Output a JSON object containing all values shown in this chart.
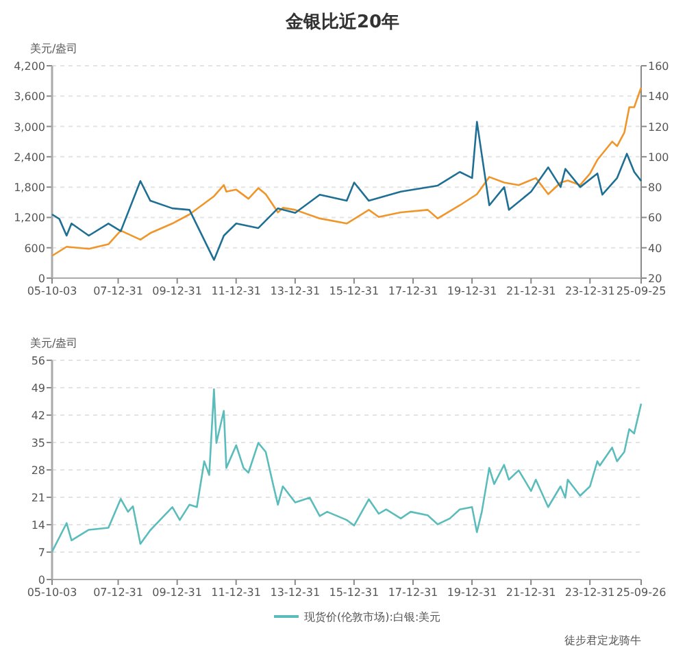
{
  "chart_data": [
    {
      "type": "line",
      "title": "金银比近20年",
      "ylabel": "美元/盎司",
      "grid": "y",
      "legend": false,
      "xlim": [
        "2005-10-03",
        "2025-09-25"
      ],
      "xticks": [
        {
          "value": "2005-10-03",
          "label": "05-10-03"
        },
        {
          "value": "2007-12-31",
          "label": "07-12-31"
        },
        {
          "value": "2009-12-31",
          "label": "09-12-31"
        },
        {
          "value": "2011-12-31",
          "label": "11-12-31"
        },
        {
          "value": "2013-12-31",
          "label": "13-12-31"
        },
        {
          "value": "2015-12-31",
          "label": "15-12-31"
        },
        {
          "value": "2017-12-31",
          "label": "17-12-31"
        },
        {
          "value": "2019-12-31",
          "label": "19-12-31"
        },
        {
          "value": "2021-12-31",
          "label": "21-12-31"
        },
        {
          "value": "2023-12-31",
          "label": "23-12-31"
        },
        {
          "value": "2025-09-25",
          "label": "25-09-25"
        }
      ],
      "ylim": [
        0,
        4200
      ],
      "yticks": [
        {
          "value": 0,
          "label": "0"
        },
        {
          "value": 600,
          "label": "600"
        },
        {
          "value": 1200,
          "label": "1,200"
        },
        {
          "value": 1800,
          "label": "1,800"
        },
        {
          "value": 2400,
          "label": "2,400"
        },
        {
          "value": 3000,
          "label": "3,000"
        },
        {
          "value": 3600,
          "label": "3,600"
        },
        {
          "value": 4200,
          "label": "4,200"
        }
      ],
      "y2lim": [
        20,
        160
      ],
      "y2ticks": [
        20,
        40,
        60,
        80,
        100,
        120,
        140,
        160
      ],
      "series": [
        {
          "color": "#f0952a",
          "axis": "y",
          "x": [
            "2005-10-03",
            "2006-04",
            "2007-01",
            "2007-09",
            "2008-02",
            "2008-10",
            "2009-02",
            "2009-11",
            "2010-06",
            "2011-04",
            "2011-08",
            "2011-09",
            "2012-01",
            "2012-06",
            "2012-10",
            "2013-01",
            "2013-06",
            "2013-08",
            "2014-01",
            "2014-11",
            "2015-10",
            "2016-07",
            "2016-11",
            "2017-08",
            "2018-07",
            "2018-11",
            "2019-08",
            "2020-03",
            "2020-08",
            "2021-02",
            "2021-08",
            "2022-03",
            "2022-08",
            "2023-01",
            "2023-04",
            "2023-09",
            "2024-01",
            "2024-04",
            "2024-10",
            "2024-12",
            "2025-03",
            "2025-05",
            "2025-07",
            "2025-09-25"
          ],
          "values": [
            440,
            620,
            580,
            670,
            940,
            760,
            890,
            1080,
            1260,
            1620,
            1840,
            1710,
            1750,
            1570,
            1780,
            1660,
            1300,
            1390,
            1350,
            1180,
            1080,
            1350,
            1210,
            1300,
            1350,
            1180,
            1440,
            1660,
            2000,
            1890,
            1840,
            1980,
            1660,
            1890,
            1930,
            1840,
            2070,
            2340,
            2700,
            2610,
            2880,
            3380,
            3380,
            3770
          ]
        },
        {
          "color": "#1f6f94",
          "axis": "y2",
          "x": [
            "2005-10-03",
            "2006-01",
            "2006-04",
            "2006-06",
            "2007-01",
            "2007-09",
            "2008-02",
            "2008-10",
            "2009-02",
            "2009-11",
            "2010-06",
            "2011-04",
            "2011-08",
            "2012-01",
            "2012-10",
            "2013-06",
            "2014-01",
            "2014-11",
            "2015-10",
            "2016-01",
            "2016-07",
            "2017-08",
            "2018-11",
            "2019-08",
            "2020-01",
            "2020-03",
            "2020-05",
            "2020-08",
            "2021-02",
            "2021-04",
            "2022-01",
            "2022-08",
            "2023-01",
            "2023-03",
            "2023-09",
            "2024-04",
            "2024-06",
            "2024-12",
            "2025-04",
            "2025-07",
            "2025-09-25"
          ],
          "values": [
            62,
            59,
            48,
            56,
            48,
            56,
            51,
            84,
            71,
            66,
            65,
            32,
            48,
            56,
            53,
            66,
            63,
            75,
            71,
            83,
            71,
            77,
            81,
            90,
            86,
            123,
            101,
            68,
            80,
            65,
            77,
            93,
            80,
            92,
            80,
            89,
            75,
            86,
            102,
            90,
            84
          ]
        }
      ]
    },
    {
      "type": "line",
      "ylabel": "美元/盎司",
      "grid": "y",
      "legend": "bottom",
      "xlim": [
        "2005-10-03",
        "2025-09-26"
      ],
      "xticks": [
        {
          "value": "2005-10-03",
          "label": "05-10-03"
        },
        {
          "value": "2007-12-31",
          "label": "07-12-31"
        },
        {
          "value": "2009-12-31",
          "label": "09-12-31"
        },
        {
          "value": "2011-12-31",
          "label": "11-12-31"
        },
        {
          "value": "2013-12-31",
          "label": "13-12-31"
        },
        {
          "value": "2015-12-31",
          "label": "15-12-31"
        },
        {
          "value": "2017-12-31",
          "label": "17-12-31"
        },
        {
          "value": "2019-12-31",
          "label": "19-12-31"
        },
        {
          "value": "2021-12-31",
          "label": "21-12-31"
        },
        {
          "value": "2023-12-31",
          "label": "23-12-31"
        },
        {
          "value": "2025-09-26",
          "label": "25-09-26"
        }
      ],
      "ylim": [
        0,
        56
      ],
      "yticks": [
        0,
        7,
        14,
        21,
        28,
        35,
        42,
        49,
        56
      ],
      "annotations": [
        "徒步君定龙骑牛"
      ],
      "series": [
        {
          "name": "现货价(伦敦市场):白银:美元",
          "color": "#5bbcbc",
          "x": [
            "2005-10-03",
            "2006-04",
            "2006-06",
            "2007-01",
            "2007-09",
            "2008-02",
            "2008-05",
            "2008-07",
            "2008-10",
            "2009-02",
            "2009-11",
            "2010-02",
            "2010-06",
            "2010-09",
            "2010-12",
            "2011-02",
            "2011-04",
            "2011-05",
            "2011-08",
            "2011-09",
            "2012-01",
            "2012-04",
            "2012-06",
            "2012-10",
            "2013-01",
            "2013-04",
            "2013-06",
            "2013-08",
            "2014-01",
            "2014-07",
            "2014-11",
            "2015-02",
            "2015-10",
            "2016-01",
            "2016-07",
            "2016-11",
            "2017-02",
            "2017-08",
            "2017-12",
            "2018-07",
            "2018-11",
            "2019-04",
            "2019-08",
            "2020-01",
            "2020-03",
            "2020-05",
            "2020-08",
            "2020-10",
            "2021-02",
            "2021-04",
            "2021-08",
            "2022-01",
            "2022-03",
            "2022-08",
            "2023-01",
            "2023-03",
            "2023-04",
            "2023-09",
            "2024-01",
            "2024-04",
            "2024-05",
            "2024-10",
            "2024-12",
            "2025-03",
            "2025-05",
            "2025-07",
            "2025-09-26"
          ],
          "values": [
            7.1,
            14.4,
            10,
            12.7,
            13.2,
            20.6,
            17.3,
            18.7,
            9.1,
            12.6,
            18.5,
            15.2,
            19.1,
            18.5,
            30.2,
            26.7,
            48.6,
            34.9,
            43.1,
            28.5,
            34.3,
            28.5,
            27.3,
            34.9,
            32.6,
            24.4,
            19.1,
            23.8,
            19.7,
            20.9,
            16.2,
            17.3,
            15.2,
            13.8,
            20.5,
            16.8,
            17.9,
            15.6,
            17.3,
            16.4,
            14.1,
            15.6,
            17.9,
            18.5,
            12.1,
            17.3,
            28.5,
            24.4,
            29.3,
            25.5,
            27.9,
            22.6,
            25.5,
            18.5,
            23.8,
            20.9,
            25.5,
            21.4,
            23.8,
            30.2,
            29.1,
            33.7,
            30.2,
            32.6,
            38.4,
            37.3,
            44.9
          ]
        }
      ]
    }
  ]
}
